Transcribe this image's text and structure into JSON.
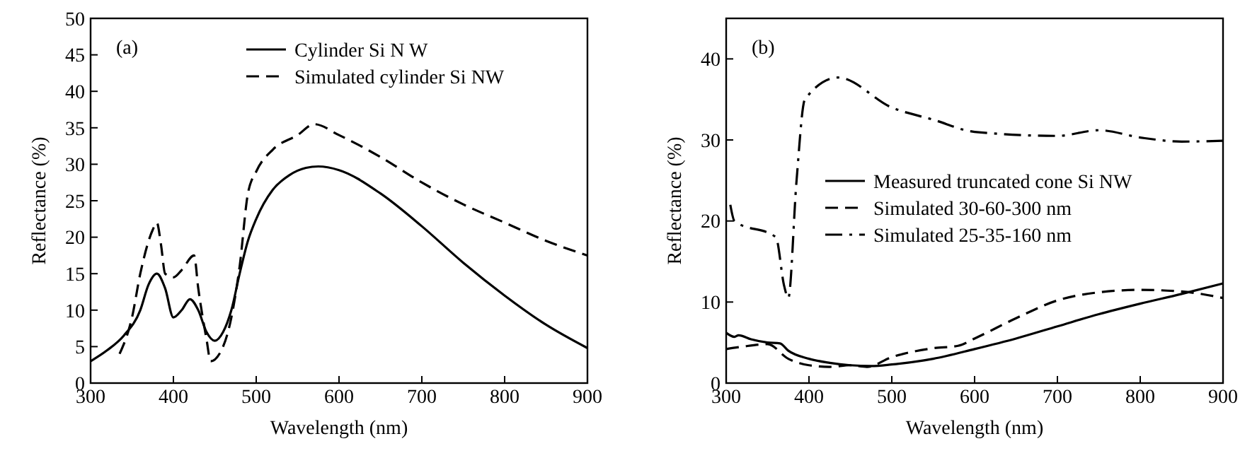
{
  "chart_data": [
    {
      "type": "line",
      "xlabel": "Wavelength (nm)",
      "ylabel": "Reflectance (%)",
      "annotations": [
        "(a)"
      ],
      "xlim": [
        300,
        900
      ],
      "xticks": [
        300,
        400,
        500,
        600,
        700,
        800,
        900
      ],
      "ylim": [
        0,
        50
      ],
      "yticks": [
        0,
        5,
        10,
        15,
        20,
        25,
        30,
        35,
        40,
        45,
        50
      ],
      "legend": "top right",
      "series": [
        {
          "name": "Cylinder Si N  W",
          "color": "#000000",
          "line_style": "solid",
          "x": [
            300,
            320,
            340,
            360,
            370,
            380,
            390,
            400,
            410,
            420,
            430,
            440,
            450,
            460,
            470,
            480,
            490,
            500,
            520,
            540,
            560,
            575,
            600,
            650,
            700,
            750,
            800,
            850,
            900
          ],
          "values": [
            3,
            4.5,
            6.5,
            10,
            13.5,
            15,
            13,
            9,
            10,
            11.5,
            10,
            7,
            5.8,
            7,
            10,
            15,
            19.5,
            22.5,
            26.5,
            28.5,
            29.5,
            29.7,
            29.2,
            26,
            21.5,
            16.5,
            12,
            8,
            4.8
          ]
        },
        {
          "name": "Simulated cylinder Si NW",
          "color": "#000000",
          "line_style": "dashed",
          "x": [
            335,
            350,
            360,
            375,
            380,
            385,
            390,
            400,
            410,
            425,
            430,
            440,
            445,
            460,
            470,
            480,
            490,
            500,
            520,
            550,
            570,
            600,
            650,
            700,
            750,
            800,
            850,
            900
          ],
          "values": [
            4,
            9,
            15,
            21,
            22,
            19,
            15,
            14.5,
            15.5,
            17.5,
            13,
            6,
            3,
            5,
            9,
            16,
            26,
            29,
            32,
            34,
            35.5,
            34,
            31,
            27.5,
            24.5,
            22,
            19.5,
            17.5
          ]
        }
      ]
    },
    {
      "type": "line",
      "xlabel": "Wavelength (nm)",
      "ylabel": "Reflectance (%)",
      "annotations": [
        "(b)"
      ],
      "xlim": [
        300,
        900
      ],
      "xticks": [
        300,
        400,
        500,
        600,
        700,
        800,
        900
      ],
      "ylim": [
        0,
        45
      ],
      "yticks": [
        0,
        10,
        20,
        30,
        40
      ],
      "legend": "right",
      "series": [
        {
          "name": "Measured truncated cone Si NW",
          "color": "#000000",
          "line_style": "solid",
          "x": [
            300,
            310,
            315,
            330,
            350,
            365,
            375,
            400,
            425,
            450,
            475,
            500,
            550,
            600,
            650,
            700,
            750,
            800,
            850,
            900
          ],
          "values": [
            6.2,
            5.7,
            5.9,
            5.4,
            5,
            4.9,
            4,
            3,
            2.5,
            2.2,
            2.1,
            2.3,
            3,
            4.2,
            5.5,
            7,
            8.5,
            9.8,
            11,
            12.3
          ]
        },
        {
          "name": "Simulated 30-60-300 nm",
          "color": "#000000",
          "line_style": "dashed",
          "x": [
            300,
            320,
            350,
            375,
            400,
            425,
            450,
            470,
            500,
            550,
            580,
            600,
            650,
            700,
            750,
            800,
            850,
            900
          ],
          "values": [
            4.2,
            4.5,
            4.8,
            3,
            2.2,
            2,
            2.2,
            2,
            3.2,
            4.3,
            4.6,
            5.5,
            8,
            10.2,
            11.2,
            11.5,
            11.3,
            10.5
          ]
        },
        {
          "name": "Simulated 25-35-160 nm",
          "color": "#000000",
          "line_style": "dashdot",
          "x": [
            305,
            310,
            360,
            370,
            375,
            385,
            395,
            435,
            500,
            550,
            600,
            700,
            750,
            800,
            850,
            900
          ],
          "values": [
            22,
            20,
            18,
            12,
            10.5,
            25,
            35,
            37.7,
            34,
            32.5,
            31,
            30.5,
            31.2,
            30.3,
            29.8,
            29.9
          ]
        }
      ]
    }
  ]
}
